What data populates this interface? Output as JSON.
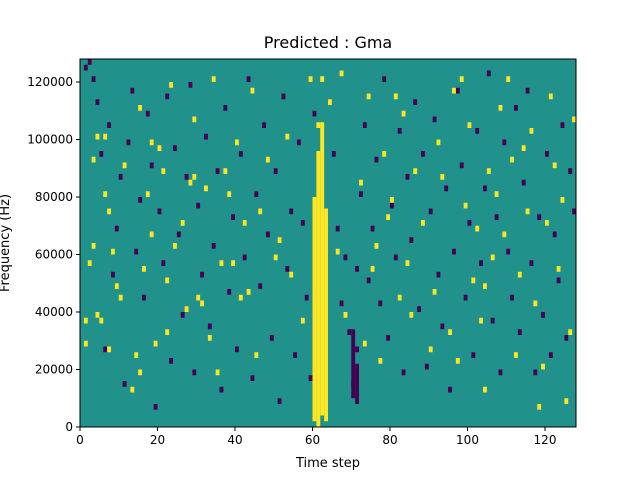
{
  "chart_data": {
    "type": "heatmap",
    "title": "Predicted : Gma",
    "xlabel": "Time step",
    "ylabel": "Frequency (Hz)",
    "xlim": [
      0,
      128
    ],
    "ylim": [
      0,
      128000
    ],
    "xticks": [
      0,
      20,
      40,
      60,
      80,
      100,
      120
    ],
    "yticks": [
      0,
      20000,
      40000,
      60000,
      80000,
      100000,
      120000
    ],
    "ytick_labels": [
      "0",
      "20000",
      "40000",
      "60000",
      "80000",
      "100000",
      "120000"
    ],
    "n_freq_bins": 64,
    "bin_hz": 2000,
    "colors": {
      "background": "#21918c",
      "low": "#440154",
      "high": "#fde725",
      "frame": "#000000"
    },
    "yellow_band": [
      {
        "t": 60,
        "f_from": 2000,
        "f_to": 80000
      },
      {
        "t": 61,
        "f_from": 0,
        "f_to": 96000
      },
      {
        "t": 62,
        "f_from": 4000,
        "f_to": 106000
      },
      {
        "t": 63,
        "f_from": 2000,
        "f_to": 76000
      },
      {
        "t": 61,
        "f_from": 104000,
        "f_to": 106000
      },
      {
        "t": 62,
        "f_from": 120000,
        "f_to": 122000
      }
    ],
    "yellow_cells": [
      [
        1,
        14
      ],
      [
        1,
        18
      ],
      [
        2,
        28
      ],
      [
        3,
        46
      ],
      [
        3,
        31
      ],
      [
        4,
        19
      ],
      [
        4,
        50
      ],
      [
        5,
        18
      ],
      [
        6,
        40
      ],
      [
        6,
        50
      ],
      [
        7,
        13
      ],
      [
        7,
        37
      ],
      [
        8,
        30
      ],
      [
        9,
        24
      ],
      [
        10,
        22
      ],
      [
        11,
        45
      ],
      [
        13,
        6
      ],
      [
        14,
        12
      ],
      [
        15,
        9
      ],
      [
        15,
        55
      ],
      [
        16,
        27
      ],
      [
        17,
        40
      ],
      [
        18,
        33
      ],
      [
        18,
        49
      ],
      [
        19,
        14
      ],
      [
        20,
        48
      ],
      [
        21,
        44
      ],
      [
        22,
        16
      ],
      [
        22,
        25
      ],
      [
        23,
        59
      ],
      [
        24,
        31
      ],
      [
        26,
        35
      ],
      [
        27,
        20
      ],
      [
        28,
        42
      ],
      [
        29,
        43
      ],
      [
        29,
        53
      ],
      [
        30,
        22
      ],
      [
        31,
        21
      ],
      [
        32,
        41
      ],
      [
        33,
        15
      ],
      [
        34,
        60
      ],
      [
        35,
        9
      ],
      [
        36,
        28
      ],
      [
        37,
        44
      ],
      [
        38,
        40
      ],
      [
        39,
        28
      ],
      [
        40,
        49
      ],
      [
        41,
        22
      ],
      [
        42,
        35
      ],
      [
        43,
        23
      ],
      [
        44,
        58
      ],
      [
        45,
        12
      ],
      [
        46,
        37
      ],
      [
        48,
        46
      ],
      [
        50,
        29
      ],
      [
        51,
        32
      ],
      [
        53,
        50
      ],
      [
        54,
        26
      ],
      [
        57,
        18
      ],
      [
        59,
        60
      ],
      [
        64,
        56
      ],
      [
        66,
        30
      ],
      [
        67,
        61
      ],
      [
        68,
        19
      ],
      [
        72,
        42
      ],
      [
        73,
        14
      ],
      [
        74,
        57
      ],
      [
        75,
        27
      ],
      [
        76,
        31
      ],
      [
        77,
        11
      ],
      [
        78,
        47
      ],
      [
        79,
        36
      ],
      [
        80,
        39
      ],
      [
        81,
        57
      ],
      [
        82,
        22
      ],
      [
        83,
        54
      ],
      [
        84,
        28
      ],
      [
        85,
        19
      ],
      [
        86,
        44
      ],
      [
        88,
        35
      ],
      [
        90,
        13
      ],
      [
        91,
        23
      ],
      [
        92,
        49
      ],
      [
        93,
        43
      ],
      [
        95,
        16
      ],
      [
        96,
        58
      ],
      [
        97,
        11
      ],
      [
        98,
        60
      ],
      [
        99,
        38
      ],
      [
        100,
        52
      ],
      [
        101,
        25
      ],
      [
        102,
        34
      ],
      [
        103,
        18
      ],
      [
        104,
        6
      ],
      [
        104,
        24
      ],
      [
        105,
        44
      ],
      [
        106,
        29
      ],
      [
        107,
        40
      ],
      [
        108,
        55
      ],
      [
        109,
        33
      ],
      [
        110,
        60
      ],
      [
        111,
        46
      ],
      [
        112,
        12
      ],
      [
        113,
        26
      ],
      [
        114,
        48
      ],
      [
        115,
        37
      ],
      [
        116,
        51
      ],
      [
        117,
        21
      ],
      [
        118,
        3
      ],
      [
        119,
        10
      ],
      [
        120,
        35
      ],
      [
        121,
        57
      ],
      [
        122,
        45
      ],
      [
        123,
        27
      ],
      [
        124,
        39
      ],
      [
        125,
        4
      ],
      [
        126,
        16
      ],
      [
        127,
        53
      ]
    ],
    "dark_cells": [
      [
        1,
        62
      ],
      [
        2,
        63
      ],
      [
        3,
        60
      ],
      [
        4,
        56
      ],
      [
        5,
        47
      ],
      [
        6,
        13
      ],
      [
        7,
        52
      ],
      [
        8,
        26
      ],
      [
        9,
        34
      ],
      [
        10,
        43
      ],
      [
        11,
        7
      ],
      [
        12,
        49
      ],
      [
        13,
        58
      ],
      [
        14,
        30
      ],
      [
        15,
        39
      ],
      [
        16,
        22
      ],
      [
        17,
        54
      ],
      [
        18,
        45
      ],
      [
        19,
        3
      ],
      [
        20,
        37
      ],
      [
        21,
        28
      ],
      [
        22,
        57
      ],
      [
        23,
        11
      ],
      [
        24,
        48
      ],
      [
        25,
        33
      ],
      [
        26,
        19
      ],
      [
        27,
        43
      ],
      [
        28,
        59
      ],
      [
        29,
        9
      ],
      [
        30,
        38
      ],
      [
        31,
        26
      ],
      [
        32,
        50
      ],
      [
        33,
        17
      ],
      [
        34,
        31
      ],
      [
        35,
        44
      ],
      [
        36,
        6
      ],
      [
        37,
        55
      ],
      [
        38,
        23
      ],
      [
        39,
        36
      ],
      [
        40,
        13
      ],
      [
        41,
        47
      ],
      [
        42,
        29
      ],
      [
        43,
        60
      ],
      [
        44,
        8
      ],
      [
        45,
        40
      ],
      [
        46,
        24
      ],
      [
        47,
        52
      ],
      [
        48,
        33
      ],
      [
        49,
        15
      ],
      [
        50,
        44
      ],
      [
        51,
        4
      ],
      [
        52,
        57
      ],
      [
        53,
        27
      ],
      [
        54,
        37
      ],
      [
        55,
        12
      ],
      [
        56,
        49
      ],
      [
        57,
        35
      ],
      [
        58,
        22
      ],
      [
        59,
        8
      ],
      [
        60,
        54
      ],
      [
        65,
        47
      ],
      [
        66,
        34
      ],
      [
        67,
        21
      ],
      [
        68,
        29
      ],
      [
        69,
        16
      ],
      [
        70,
        7
      ],
      [
        71,
        13
      ],
      [
        71,
        27
      ],
      [
        72,
        40
      ],
      [
        73,
        52
      ],
      [
        74,
        25
      ],
      [
        75,
        34
      ],
      [
        76,
        46
      ],
      [
        77,
        21
      ],
      [
        78,
        60
      ],
      [
        79,
        15
      ],
      [
        80,
        38
      ],
      [
        81,
        29
      ],
      [
        82,
        51
      ],
      [
        83,
        9
      ],
      [
        84,
        43
      ],
      [
        85,
        32
      ],
      [
        86,
        56
      ],
      [
        87,
        20
      ],
      [
        88,
        47
      ],
      [
        89,
        10
      ],
      [
        90,
        37
      ],
      [
        91,
        53
      ],
      [
        92,
        26
      ],
      [
        93,
        17
      ],
      [
        94,
        41
      ],
      [
        95,
        6
      ],
      [
        96,
        30
      ],
      [
        97,
        58
      ],
      [
        98,
        45
      ],
      [
        99,
        22
      ],
      [
        100,
        35
      ],
      [
        101,
        12
      ],
      [
        102,
        51
      ],
      [
        103,
        28
      ],
      [
        104,
        41
      ],
      [
        105,
        61
      ],
      [
        106,
        18
      ],
      [
        107,
        36
      ],
      [
        108,
        9
      ],
      [
        109,
        49
      ],
      [
        110,
        30
      ],
      [
        111,
        22
      ],
      [
        112,
        55
      ],
      [
        113,
        16
      ],
      [
        114,
        42
      ],
      [
        115,
        58
      ],
      [
        116,
        28
      ],
      [
        117,
        9
      ],
      [
        118,
        36
      ],
      [
        119,
        19
      ],
      [
        120,
        47
      ],
      [
        121,
        12
      ],
      [
        122,
        33
      ],
      [
        123,
        25
      ],
      [
        124,
        52
      ],
      [
        125,
        15
      ],
      [
        126,
        44
      ],
      [
        127,
        37
      ]
    ],
    "dark_band": [
      {
        "t": 70,
        "f_from": 10000,
        "f_to": 34000
      },
      {
        "t": 71,
        "f_from": 8000,
        "f_to": 22000
      }
    ]
  }
}
